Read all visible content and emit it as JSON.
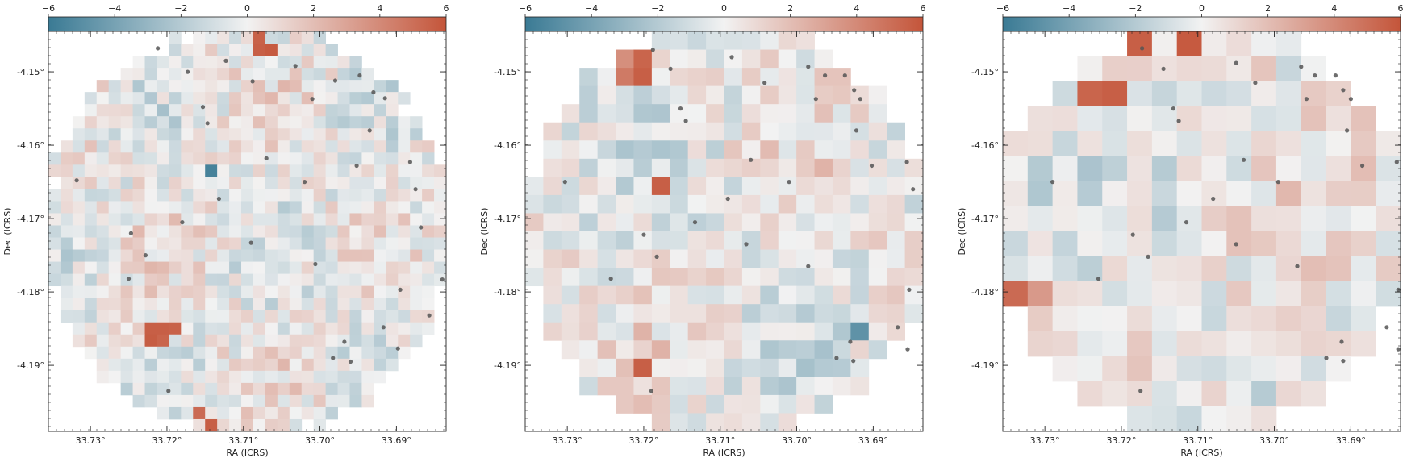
{
  "chart_data": [
    {
      "type": "heatmap",
      "xlabel": "RA (ICRS)",
      "ylabel": "Dec (ICRS)",
      "xlim": [
        33.7355,
        33.6835
      ],
      "ylim": [
        -4.199,
        -4.1445
      ],
      "x_ticks": [
        "33.73°",
        "33.72°",
        "33.71°",
        "33.70°",
        "33.69°"
      ],
      "x_tick_values": [
        33.73,
        33.72,
        33.71,
        33.7,
        33.69
      ],
      "y_ticks": [
        "-4.15°",
        "-4.16°",
        "-4.17°",
        "-4.18°",
        "-4.19°"
      ],
      "y_tick_values": [
        -4.15,
        -4.16,
        -4.17,
        -4.18,
        -4.19
      ],
      "colorbar": {
        "range": [
          -6,
          6
        ],
        "ticks": [
          "−6",
          "−4",
          "−2",
          "0",
          "2",
          "4",
          "6"
        ],
        "tick_values": [
          -6,
          -4,
          -2,
          0,
          2,
          4,
          6
        ],
        "low_color": "#3a7a94",
        "mid_color": "#f2f2f2",
        "high_color": "#c4553a",
        "position": "top"
      },
      "grid": {
        "nx": 33,
        "ny": 33,
        "seed": 11
      },
      "hot_cells": [
        {
          "i": 17,
          "j": 0,
          "v": 5.5
        },
        {
          "i": 18,
          "j": 1,
          "v": 5.8
        },
        {
          "i": 17,
          "j": 1,
          "v": 5.6
        },
        {
          "i": 9,
          "j": 1,
          "v": -5.8
        },
        {
          "i": 13,
          "j": 11,
          "v": -5.6
        },
        {
          "i": 8,
          "j": 24,
          "v": 5.6
        },
        {
          "i": 9,
          "j": 24,
          "v": 5.6
        },
        {
          "i": 10,
          "j": 24,
          "v": 5.5
        },
        {
          "i": 8,
          "j": 25,
          "v": 5.7
        },
        {
          "i": 9,
          "j": 25,
          "v": 5.4
        },
        {
          "i": 12,
          "j": 31,
          "v": 5.2
        },
        {
          "i": 13,
          "j": 32,
          "v": 5.6
        }
      ],
      "points": [
        [
          33.7212,
          -4.1468
        ],
        [
          33.7173,
          -4.15
        ],
        [
          33.7123,
          -4.1485
        ],
        [
          33.7032,
          -4.1492
        ],
        [
          33.6948,
          -4.1505
        ],
        [
          33.698,
          -4.1512
        ],
        [
          33.7088,
          -4.1513
        ],
        [
          33.693,
          -4.1528
        ],
        [
          33.6915,
          -4.1536
        ],
        [
          33.7153,
          -4.1548
        ],
        [
          33.701,
          -4.1537
        ],
        [
          33.7147,
          -4.157
        ],
        [
          33.6935,
          -4.158
        ],
        [
          33.707,
          -4.1618
        ],
        [
          33.6952,
          -4.1628
        ],
        [
          33.6882,
          -4.1623
        ],
        [
          33.702,
          -4.165
        ],
        [
          33.7318,
          -4.1648
        ],
        [
          33.6875,
          -4.166
        ],
        [
          33.7132,
          -4.1673
        ],
        [
          33.718,
          -4.1705
        ],
        [
          33.6868,
          -4.1712
        ],
        [
          33.7247,
          -4.172
        ],
        [
          33.7228,
          -4.175
        ],
        [
          33.709,
          -4.1733
        ],
        [
          33.7006,
          -4.1762
        ],
        [
          33.725,
          -4.1782
        ],
        [
          33.684,
          -4.1783
        ],
        [
          33.6895,
          -4.1797
        ],
        [
          33.6857,
          -4.1832
        ],
        [
          33.6917,
          -4.1848
        ],
        [
          33.6968,
          -4.1868
        ],
        [
          33.6898,
          -4.1877
        ],
        [
          33.6983,
          -4.189
        ],
        [
          33.696,
          -4.1895
        ],
        [
          33.7198,
          -4.1935
        ]
      ]
    },
    {
      "type": "heatmap",
      "xlabel": "RA (ICRS)",
      "ylabel": "Dec (ICRS)",
      "xlim": [
        33.7355,
        33.6835
      ],
      "ylim": [
        -4.199,
        -4.1445
      ],
      "x_ticks": [
        "33.73°",
        "33.72°",
        "33.71°",
        "33.70°",
        "33.69°"
      ],
      "x_tick_values": [
        33.73,
        33.72,
        33.71,
        33.7,
        33.69
      ],
      "y_ticks": [
        "-4.15°",
        "-4.16°",
        "-4.17°",
        "-4.18°",
        "-4.19°"
      ],
      "y_tick_values": [
        -4.15,
        -4.16,
        -4.17,
        -4.18,
        -4.19
      ],
      "colorbar": {
        "range": [
          -6,
          6
        ],
        "ticks": [
          "−6",
          "−4",
          "−2",
          "0",
          "2",
          "4",
          "6"
        ],
        "tick_values": [
          -6,
          -4,
          -2,
          0,
          2,
          4,
          6
        ],
        "low_color": "#3a7a94",
        "mid_color": "#f2f2f2",
        "high_color": "#c4553a",
        "position": "top"
      },
      "grid": {
        "nx": 22,
        "ny": 22,
        "seed": 23
      },
      "hot_cells": [
        {
          "i": 6,
          "j": 1,
          "v": 5.4
        },
        {
          "i": 6,
          "j": 2,
          "v": 5.6
        },
        {
          "i": 5,
          "j": 2,
          "v": 4.6
        },
        {
          "i": 5,
          "j": 1,
          "v": 3.8
        },
        {
          "i": 7,
          "j": 8,
          "v": 5.6
        },
        {
          "i": 0,
          "j": 17,
          "v": 5.4
        },
        {
          "i": 6,
          "j": 18,
          "v": 5.6
        },
        {
          "i": 18,
          "j": 20,
          "v": -5.6
        },
        {
          "i": 18,
          "j": 16,
          "v": -4.8
        }
      ],
      "points": [
        [
          33.7188,
          -4.147
        ],
        [
          33.7085,
          -4.148
        ],
        [
          33.7165,
          -4.1496
        ],
        [
          33.6985,
          -4.1493
        ],
        [
          33.6963,
          -4.1505
        ],
        [
          33.6937,
          -4.1505
        ],
        [
          33.7042,
          -4.1515
        ],
        [
          33.6925,
          -4.1525
        ],
        [
          33.6917,
          -4.1537
        ],
        [
          33.6975,
          -4.1537
        ],
        [
          33.7152,
          -4.155
        ],
        [
          33.7145,
          -4.1567
        ],
        [
          33.6922,
          -4.158
        ],
        [
          33.706,
          -4.162
        ],
        [
          33.6902,
          -4.1628
        ],
        [
          33.6856,
          -4.1623
        ],
        [
          33.701,
          -4.165
        ],
        [
          33.7303,
          -4.165
        ],
        [
          33.6848,
          -4.166
        ],
        [
          33.709,
          -4.1673
        ],
        [
          33.7133,
          -4.1705
        ],
        [
          33.6833,
          -4.1712
        ],
        [
          33.72,
          -4.1722
        ],
        [
          33.7183,
          -4.1752
        ],
        [
          33.7066,
          -4.1735
        ],
        [
          33.6985,
          -4.1765
        ],
        [
          33.7243,
          -4.1782
        ],
        [
          33.679,
          -4.1783
        ],
        [
          33.6853,
          -4.1797
        ],
        [
          33.681,
          -4.1833
        ],
        [
          33.6868,
          -4.1848
        ],
        [
          33.693,
          -4.1868
        ],
        [
          33.6855,
          -4.1878
        ],
        [
          33.6948,
          -4.189
        ],
        [
          33.6926,
          -4.1894
        ],
        [
          33.719,
          -4.1935
        ]
      ]
    },
    {
      "type": "heatmap",
      "xlabel": "RA (ICRS)",
      "ylabel": "Dec (ICRS)",
      "xlim": [
        33.7355,
        33.6835
      ],
      "ylim": [
        -4.199,
        -4.1445
      ],
      "x_ticks": [
        "33.73°",
        "33.72°",
        "33.71°",
        "33.70°",
        "33.69°"
      ],
      "x_tick_values": [
        33.73,
        33.72,
        33.71,
        33.7,
        33.69
      ],
      "y_ticks": [
        "-4.15°",
        "-4.16°",
        "-4.17°",
        "-4.18°",
        "-4.19°"
      ],
      "y_tick_values": [
        -4.15,
        -4.16,
        -4.17,
        -4.18,
        -4.19
      ],
      "colorbar": {
        "range": [
          -6,
          6
        ],
        "ticks": [
          "−6",
          "−4",
          "−2",
          "0",
          "2",
          "4",
          "6"
        ],
        "tick_values": [
          -6,
          -4,
          -2,
          0,
          2,
          4,
          6
        ],
        "low_color": "#3a7a94",
        "mid_color": "#f2f2f2",
        "high_color": "#c4553a",
        "position": "top"
      },
      "grid": {
        "nx": 16,
        "ny": 16,
        "seed": 37
      },
      "hot_cells": [
        {
          "i": 5,
          "j": 0,
          "v": 5.6
        },
        {
          "i": 7,
          "j": 0,
          "v": 5.8
        },
        {
          "i": 3,
          "j": 2,
          "v": 5.4
        },
        {
          "i": 4,
          "j": 2,
          "v": 5.6
        },
        {
          "i": 0,
          "j": 10,
          "v": 5.2
        },
        {
          "i": 1,
          "j": 10,
          "v": 3.4
        }
      ],
      "points": [
        [
          33.7173,
          -4.1468
        ],
        [
          33.705,
          -4.1488
        ],
        [
          33.7145,
          -4.1496
        ],
        [
          33.6965,
          -4.1493
        ],
        [
          33.6947,
          -4.1505
        ],
        [
          33.692,
          -4.1505
        ],
        [
          33.7025,
          -4.1515
        ],
        [
          33.691,
          -4.1525
        ],
        [
          33.69,
          -4.1537
        ],
        [
          33.6958,
          -4.1537
        ],
        [
          33.7132,
          -4.155
        ],
        [
          33.7125,
          -4.1567
        ],
        [
          33.6905,
          -4.158
        ],
        [
          33.704,
          -4.162
        ],
        [
          33.6885,
          -4.1628
        ],
        [
          33.684,
          -4.1623
        ],
        [
          33.6995,
          -4.165
        ],
        [
          33.729,
          -4.165
        ],
        [
          33.683,
          -4.166
        ],
        [
          33.708,
          -4.1673
        ],
        [
          33.7115,
          -4.1705
        ],
        [
          33.6815,
          -4.1712
        ],
        [
          33.7185,
          -4.1722
        ],
        [
          33.7165,
          -4.1752
        ],
        [
          33.705,
          -4.1735
        ],
        [
          33.697,
          -4.1765
        ],
        [
          33.723,
          -4.1782
        ],
        [
          33.677,
          -4.1783
        ],
        [
          33.6838,
          -4.1797
        ],
        [
          33.6795,
          -4.1833
        ],
        [
          33.6853,
          -4.1848
        ],
        [
          33.6912,
          -4.1868
        ],
        [
          33.6838,
          -4.1878
        ],
        [
          33.6932,
          -4.189
        ],
        [
          33.691,
          -4.1894
        ],
        [
          33.7175,
          -4.1935
        ]
      ]
    }
  ]
}
